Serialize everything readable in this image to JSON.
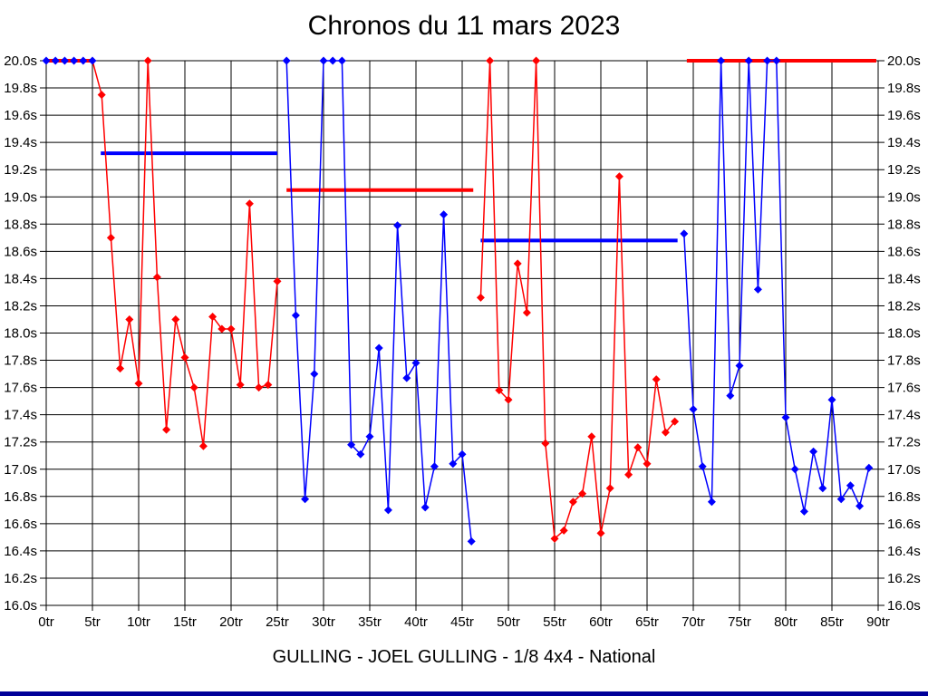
{
  "title": "Chronos du 11 mars 2023",
  "footer": "GULLING - JOEL GULLING - 1/8 4x4 - National",
  "colors": {
    "series_red": "#ff0000",
    "series_blue": "#0000ff",
    "grid": "#000000",
    "text": "#000000",
    "background": "#ffffff",
    "bottom_bar": "#000099"
  },
  "chart_data": {
    "type": "line",
    "title": "Chronos du 11 mars 2023",
    "subtitle": "GULLING - JOEL GULLING - 1/8 4x4 - National",
    "x_unit": "tr",
    "y_unit": "s",
    "xlim": [
      0,
      90
    ],
    "ylim": [
      16.0,
      20.0
    ],
    "x_tick_step": 5,
    "y_tick_step": 0.2,
    "grid": true,
    "legend": "none",
    "x_ticks": [
      "0tr",
      "5tr",
      "10tr",
      "15tr",
      "20tr",
      "25tr",
      "30tr",
      "35tr",
      "40tr",
      "45tr",
      "50tr",
      "55tr",
      "60tr",
      "65tr",
      "70tr",
      "75tr",
      "80tr",
      "85tr",
      "90tr"
    ],
    "y_ticks": [
      "20.0s",
      "19.8s",
      "19.6s",
      "19.4s",
      "19.2s",
      "19.0s",
      "18.8s",
      "18.6s",
      "18.4s",
      "18.2s",
      "18.0s",
      "17.8s",
      "17.6s",
      "17.4s",
      "17.2s",
      "17.0s",
      "16.8s",
      "16.6s",
      "16.4s",
      "16.2s",
      "16.0s"
    ],
    "series": [
      {
        "name": "series-red-run1",
        "color": "red",
        "start_lap": 0,
        "marker_from_lap": 6,
        "values": [
          20.0,
          20.0,
          20.0,
          20.0,
          20.0,
          20.0,
          19.75,
          18.7,
          17.74,
          18.1,
          17.63,
          20.0,
          18.41,
          17.29,
          18.1,
          17.82,
          17.6,
          17.17,
          18.12,
          18.03,
          18.03,
          17.62,
          18.95,
          17.6,
          17.62,
          18.38
        ]
      },
      {
        "name": "series-blue-run1",
        "color": "blue",
        "start_lap": 26,
        "marker_from_lap": 26,
        "values": [
          20.0,
          18.13,
          16.78,
          17.7,
          20.0,
          20.0,
          20.0,
          17.18,
          17.11,
          17.24,
          17.89,
          16.7,
          18.79,
          17.67,
          17.78,
          16.72,
          17.02,
          18.87,
          17.04,
          17.11,
          16.47
        ]
      },
      {
        "name": "series-red-run2",
        "color": "red",
        "start_lap": 47,
        "marker_from_lap": 47,
        "values": [
          18.26,
          20.0,
          17.58,
          17.51,
          18.51,
          18.15,
          20.0,
          17.19,
          16.49,
          16.55,
          16.76,
          16.82,
          17.24,
          16.53,
          16.86,
          19.15,
          16.96,
          17.16,
          17.04,
          17.66,
          17.27,
          17.35
        ]
      },
      {
        "name": "series-blue-run2",
        "color": "blue",
        "start_lap": 69,
        "marker_from_lap": 69,
        "values": [
          18.73,
          17.44,
          17.02,
          16.76,
          20.0,
          17.54,
          17.76,
          20.0,
          18.32,
          20.0,
          20.0,
          17.38,
          17.0,
          16.69,
          17.13,
          16.86,
          17.51,
          16.78,
          16.88,
          16.73,
          17.01
        ]
      }
    ],
    "start_markers": {
      "color": "blue",
      "value": 20.0,
      "laps": [
        0,
        1,
        2,
        3,
        4,
        5
      ]
    },
    "reference_lines": [
      {
        "color": "red",
        "value": 20.0,
        "from_lap": 0,
        "to_lap": 5.2
      },
      {
        "color": "blue",
        "value": 19.32,
        "from_lap": 5.9,
        "to_lap": 25.0
      },
      {
        "color": "red",
        "value": 19.05,
        "from_lap": 26.0,
        "to_lap": 46.2
      },
      {
        "color": "blue",
        "value": 18.68,
        "from_lap": 47.0,
        "to_lap": 68.3
      },
      {
        "color": "red",
        "value": 20.0,
        "from_lap": 69.3,
        "to_lap": 89.8
      }
    ]
  }
}
